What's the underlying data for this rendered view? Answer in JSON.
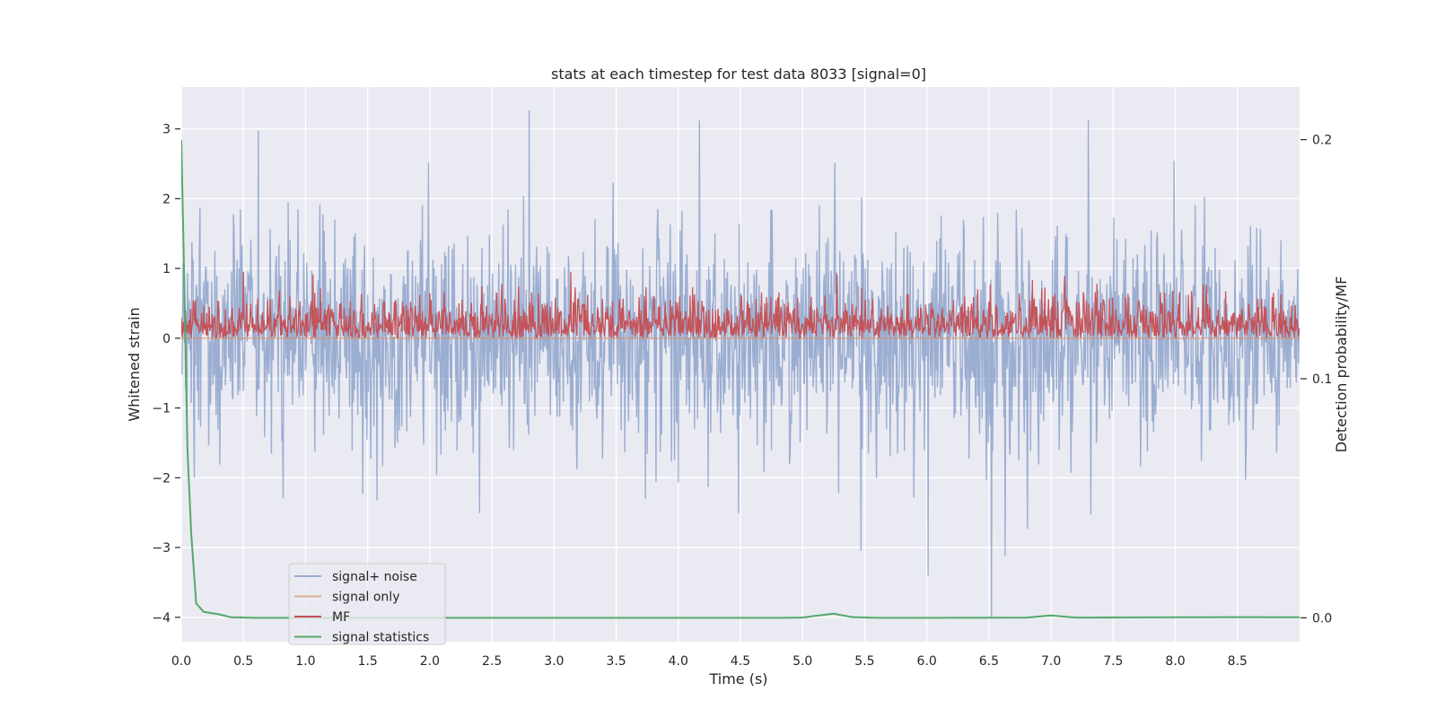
{
  "chart_data": {
    "type": "line",
    "title": "stats at each timestep for test data 8033 [signal=0]",
    "xlabel": "Time (s)",
    "ylabel": "Whitened strain",
    "y2label": "Detection probability/MF",
    "xlim": [
      0.0,
      9.0
    ],
    "ylim": [
      -4.35,
      3.6
    ],
    "y2lim": [
      -0.01,
      0.222
    ],
    "x_ticks": [
      "0.0",
      "0.5",
      "1.0",
      "1.5",
      "2.0",
      "2.5",
      "3.0",
      "3.5",
      "4.0",
      "4.5",
      "5.0",
      "5.5",
      "6.0",
      "6.5",
      "7.0",
      "7.5",
      "8.0",
      "8.5"
    ],
    "x_tick_values": [
      0.0,
      0.5,
      1.0,
      1.5,
      2.0,
      2.5,
      3.0,
      3.5,
      4.0,
      4.5,
      5.0,
      5.5,
      6.0,
      6.5,
      7.0,
      7.5,
      8.0,
      8.5
    ],
    "y_ticks": [
      "3",
      "2",
      "1",
      "0",
      "−1",
      "−2",
      "−3",
      "−4"
    ],
    "y_tick_values": [
      3,
      2,
      1,
      0,
      -1,
      -2,
      -3,
      -4
    ],
    "y2_ticks": [
      "0.2",
      "0.1",
      "0.0"
    ],
    "y2_tick_values": [
      0.2,
      0.1,
      0.0
    ],
    "grid": true,
    "legend_position": "lower-left",
    "colors": {
      "background": "#eaeaf2",
      "grid": "#ffffff",
      "signal_noise": "#4c72b0",
      "signal_only": "#dd8452",
      "mf": "#c44e52",
      "stats": "#55a868"
    },
    "series": [
      {
        "name": "signal+ noise",
        "axis": "left",
        "description_range": [
          -2.7,
          2.7
        ],
        "notable_peaks": [
          {
            "x": 0.62,
            "y": 2.98
          },
          {
            "x": 2.8,
            "y": 3.27
          },
          {
            "x": 4.17,
            "y": 3.12
          },
          {
            "x": 7.3,
            "y": 3.13
          },
          {
            "x": 5.47,
            "y": -3.05
          },
          {
            "x": 6.01,
            "y": -3.4
          },
          {
            "x": 6.52,
            "y": -4.0
          },
          {
            "x": 6.63,
            "y": -3.12
          }
        ]
      },
      {
        "name": "signal only",
        "axis": "left",
        "constant": 0.0
      },
      {
        "name": "MF",
        "axis": "left",
        "description_range": [
          0.0,
          0.95
        ]
      },
      {
        "name": "signal statistics",
        "axis": "right",
        "x": [
          0.0,
          0.02,
          0.05,
          0.08,
          0.12,
          0.18,
          0.3,
          0.4,
          0.6,
          1.0,
          2.0,
          3.0,
          4.0,
          4.8,
          5.0,
          5.1,
          5.25,
          5.4,
          5.6,
          6.0,
          6.8,
          7.0,
          7.2,
          8.0,
          8.5,
          9.0
        ],
        "values": [
          0.2,
          0.15,
          0.07,
          0.035,
          0.006,
          0.0025,
          0.0015,
          0.0002,
          0.0,
          0.0,
          0.0,
          0.0,
          0.0,
          0.0,
          0.0001,
          0.0008,
          0.0017,
          0.0003,
          0.0,
          0.0,
          0.0001,
          0.001,
          0.0001,
          0.0002,
          0.0003,
          0.0002
        ]
      }
    ]
  },
  "legend": {
    "items": [
      {
        "label": "signal+ noise",
        "color": "#4c72b0",
        "alpha": 0.5
      },
      {
        "label": "signal only",
        "color": "#dd8452",
        "alpha": 0.6
      },
      {
        "label": "MF",
        "color": "#c44e52",
        "alpha": 1.0
      },
      {
        "label": "signal statistics",
        "color": "#55a868",
        "alpha": 1.0
      }
    ]
  }
}
